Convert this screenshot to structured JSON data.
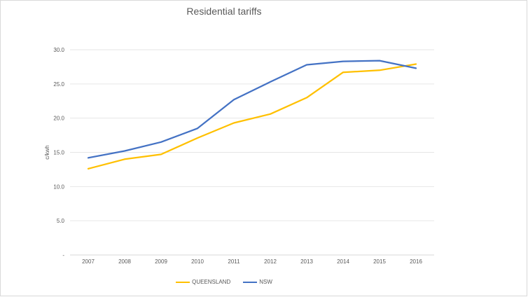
{
  "chart_data": {
    "type": "line",
    "title": "Residential tariffs",
    "xlabel": "",
    "ylabel": "c/kwh",
    "categories": [
      "2007",
      "2008",
      "2009",
      "2010",
      "2011",
      "2012",
      "2013",
      "2014",
      "2015",
      "2016"
    ],
    "ylim": [
      0,
      30
    ],
    "yticks": [
      "-",
      "5.0",
      "10.0",
      "15.0",
      "20.0",
      "25.0",
      "30.0"
    ],
    "grid": true,
    "legend_position": "bottom",
    "series": [
      {
        "name": "QUEENSLAND",
        "color": "#FFC000",
        "values": [
          12.6,
          14.0,
          14.7,
          17.1,
          19.3,
          20.6,
          23.0,
          26.7,
          27.0,
          27.9
        ]
      },
      {
        "name": "NSW",
        "color": "#4472C4",
        "values": [
          14.2,
          15.2,
          16.5,
          18.5,
          22.7,
          25.3,
          27.8,
          28.3,
          28.4,
          27.3
        ]
      }
    ]
  }
}
